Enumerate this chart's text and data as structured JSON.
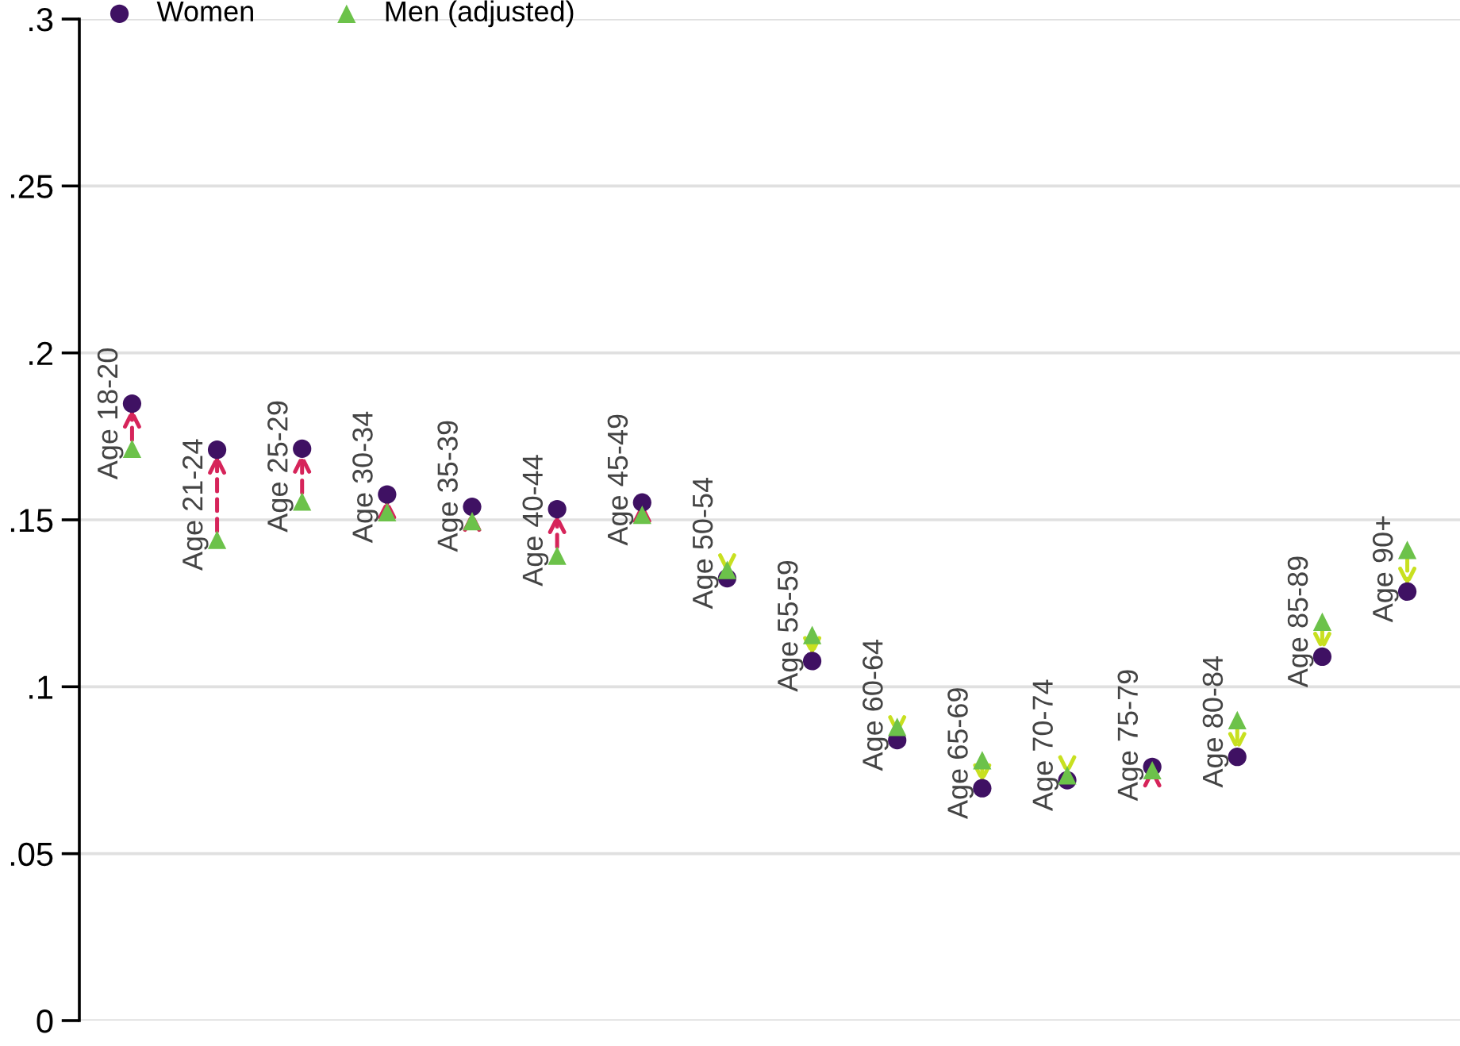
{
  "chart_data": {
    "type": "scatter",
    "categories": [
      "Age 18-20",
      "Age 21-24",
      "Age 25-29",
      "Age 30-34",
      "Age 35-39",
      "Age 40-44",
      "Age 45-49",
      "Age 50-54",
      "Age 55-59",
      "Age 60-64",
      "Age 65-69",
      "Age 70-74",
      "Age 75-79",
      "Age 80-84",
      "Age 85-89",
      "Age 90+"
    ],
    "series": [
      {
        "name": "Women",
        "color": "#3f1163",
        "marker": "circle",
        "values": [
          0.1848,
          0.171,
          0.1713,
          0.1576,
          0.1539,
          0.1532,
          0.1552,
          0.1325,
          0.1077,
          0.084,
          0.0696,
          0.072,
          0.076,
          0.079,
          0.109,
          0.1285
        ]
      },
      {
        "name": "Men (adjusted)",
        "color": "#6cc24a",
        "marker": "triangle",
        "values": [
          0.1713,
          0.144,
          0.1555,
          0.1523,
          0.1496,
          0.1393,
          0.1515,
          0.135,
          0.1155,
          0.088,
          0.078,
          0.0735,
          0.075,
          0.09,
          0.1195,
          0.141
        ]
      }
    ],
    "ylim": [
      0,
      0.3
    ],
    "yticks": [
      {
        "value": 0,
        "label": "0"
      },
      {
        "value": 0.05,
        "label": ".05"
      },
      {
        "value": 0.1,
        "label": ".1"
      },
      {
        "value": 0.15,
        "label": ".15"
      },
      {
        "value": 0.2,
        "label": ".2"
      },
      {
        "value": 0.25,
        "label": ".25"
      },
      {
        "value": 0.3,
        "label": ".3"
      }
    ],
    "grid": "y",
    "legend": "top left",
    "tick_labels": "y"
  }
}
